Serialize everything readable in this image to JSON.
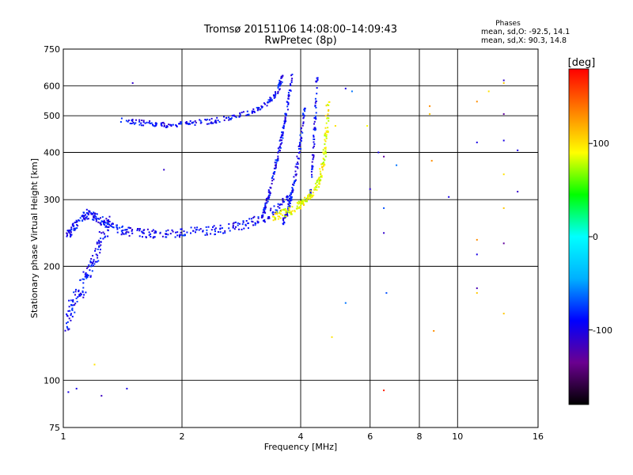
{
  "chart_data": {
    "type": "scatter",
    "title": "Tromsø 20151106 14:08:00–14:09:43",
    "subtitle": "RwPretec (8p)",
    "xlabel": "Frequency [MHz]",
    "ylabel": "Stationary phase Virtual Height [km]",
    "x_scale": "log",
    "y_scale": "log",
    "xlim": [
      1,
      16
    ],
    "ylim": [
      75,
      750
    ],
    "x_ticks": [
      {
        "value": 1,
        "label": "1"
      },
      {
        "value": 2,
        "label": "2"
      },
      {
        "value": 4,
        "label": "4"
      },
      {
        "value": 6,
        "label": "6"
      },
      {
        "value": 8,
        "label": "8"
      },
      {
        "value": 10,
        "label": "10"
      },
      {
        "value": 16,
        "label": "16"
      }
    ],
    "y_ticks": [
      {
        "value": 75,
        "label": "75"
      },
      {
        "value": 100,
        "label": "100"
      },
      {
        "value": 200,
        "label": "200"
      },
      {
        "value": 300,
        "label": "300"
      },
      {
        "value": 400,
        "label": "400"
      },
      {
        "value": 500,
        "label": "500"
      },
      {
        "value": 600,
        "label": "600"
      },
      {
        "value": 750,
        "label": "750"
      }
    ],
    "grid": true,
    "stats": {
      "heading": "Phases",
      "line_o": "mean, sd,O: -92.5, 14.1",
      "line_x": "mean, sd,X:  90.3, 14.8"
    },
    "colorbar": {
      "label": "[deg]",
      "range": [
        -180,
        180
      ],
      "ticks": [
        {
          "value": 100,
          "label": "100"
        },
        {
          "value": 0,
          "label": "0"
        },
        {
          "value": -100,
          "label": "-100"
        }
      ],
      "colors": [
        "#000000",
        "#6b0090",
        "#0000ff",
        "#00b0ff",
        "#00ffff",
        "#00ff00",
        "#ffff00",
        "#ff8000",
        "#ff0000"
      ]
    },
    "series": [
      {
        "mode": "O",
        "phase_deg": -92,
        "trace_segments": [
          {
            "x": [
              1.02,
              1.05,
              1.1,
              1.15,
              1.2,
              1.27,
              1.35,
              1.45,
              1.6,
              1.8,
              2.0,
              2.3,
              2.6,
              2.9,
              3.2,
              3.5,
              3.8
            ],
            "y": [
              240,
              250,
              265,
              275,
              272,
              262,
              252,
              247,
              245,
              244,
              245,
              248,
              252,
              258,
              268,
              285,
              305
            ],
            "spread": 0.035
          },
          {
            "x": [
              3.2,
              3.3,
              3.4,
              3.5,
              3.6,
              3.7,
              3.8
            ],
            "y": [
              270,
              300,
              340,
              390,
              450,
              530,
              640
            ],
            "spread": 0.02
          },
          {
            "x": [
              3.6,
              3.7,
              3.8,
              3.9,
              4.0,
              4.1
            ],
            "y": [
              260,
              280,
              310,
              360,
              430,
              530
            ],
            "spread": 0.02
          },
          {
            "x": [
              4.2,
              4.3,
              4.35,
              4.4
            ],
            "y": [
              300,
              380,
              480,
              640
            ],
            "spread": 0.02
          },
          {
            "x": [
              1.4,
              1.6,
              1.8,
              2.0,
              2.3,
              2.6,
              3.0,
              3.3,
              3.5,
              3.6
            ],
            "y": [
              485,
              478,
              472,
              475,
              482,
              492,
              510,
              540,
              580,
              640
            ],
            "spread": 0.02
          },
          {
            "x": [
              1.02,
              1.05,
              1.1,
              1.15,
              1.2,
              1.25,
              1.3
            ],
            "y": [
              140,
              155,
              170,
              190,
              210,
              235,
              260
            ],
            "spread": 0.06
          }
        ]
      },
      {
        "mode": "X",
        "phase_deg": 90,
        "trace_segments": [
          {
            "x": [
              3.4,
              3.6,
              3.8,
              4.0,
              4.2,
              4.4,
              4.5,
              4.6,
              4.65,
              4.7
            ],
            "y": [
              270,
              275,
              282,
              292,
              305,
              325,
              350,
              390,
              450,
              560
            ],
            "spread": 0.03
          }
        ]
      },
      {
        "mode": "scattered",
        "points": [
          {
            "x": 1.5,
            "y": 610,
            "phase_deg": -110
          },
          {
            "x": 1.8,
            "y": 360,
            "phase_deg": -110
          },
          {
            "x": 1.03,
            "y": 93,
            "phase_deg": -100
          },
          {
            "x": 1.08,
            "y": 95,
            "phase_deg": -100
          },
          {
            "x": 1.25,
            "y": 91,
            "phase_deg": -115
          },
          {
            "x": 1.45,
            "y": 95,
            "phase_deg": -100
          },
          {
            "x": 1.2,
            "y": 110,
            "phase_deg": 100
          },
          {
            "x": 5.2,
            "y": 590,
            "phase_deg": -100
          },
          {
            "x": 5.9,
            "y": 470,
            "phase_deg": 90
          },
          {
            "x": 6.3,
            "y": 400,
            "phase_deg": -100
          },
          {
            "x": 6.5,
            "y": 390,
            "phase_deg": -130
          },
          {
            "x": 7.0,
            "y": 370,
            "phase_deg": -60
          },
          {
            "x": 6.0,
            "y": 320,
            "phase_deg": -110
          },
          {
            "x": 6.5,
            "y": 285,
            "phase_deg": -70
          },
          {
            "x": 6.5,
            "y": 245,
            "phase_deg": -110
          },
          {
            "x": 6.6,
            "y": 170,
            "phase_deg": -70
          },
          {
            "x": 5.2,
            "y": 160,
            "phase_deg": -60
          },
          {
            "x": 4.8,
            "y": 130,
            "phase_deg": 100
          },
          {
            "x": 6.5,
            "y": 94,
            "phase_deg": 170
          },
          {
            "x": 8.5,
            "y": 530,
            "phase_deg": 130
          },
          {
            "x": 8.5,
            "y": 505,
            "phase_deg": 110
          },
          {
            "x": 8.6,
            "y": 380,
            "phase_deg": 130
          },
          {
            "x": 9.5,
            "y": 305,
            "phase_deg": -100
          },
          {
            "x": 8.7,
            "y": 135,
            "phase_deg": 130
          },
          {
            "x": 11.2,
            "y": 545,
            "phase_deg": 130
          },
          {
            "x": 11.2,
            "y": 425,
            "phase_deg": -100
          },
          {
            "x": 11.2,
            "y": 235,
            "phase_deg": 130
          },
          {
            "x": 11.2,
            "y": 215,
            "phase_deg": -100
          },
          {
            "x": 11.2,
            "y": 175,
            "phase_deg": -120
          },
          {
            "x": 11.2,
            "y": 170,
            "phase_deg": 110
          },
          {
            "x": 12.0,
            "y": 580,
            "phase_deg": 100
          },
          {
            "x": 13.1,
            "y": 620,
            "phase_deg": -110
          },
          {
            "x": 13.1,
            "y": 610,
            "phase_deg": 110
          },
          {
            "x": 13.1,
            "y": 505,
            "phase_deg": -130
          },
          {
            "x": 13.1,
            "y": 430,
            "phase_deg": -100
          },
          {
            "x": 13.1,
            "y": 350,
            "phase_deg": 100
          },
          {
            "x": 13.1,
            "y": 285,
            "phase_deg": 110
          },
          {
            "x": 13.1,
            "y": 230,
            "phase_deg": -130
          },
          {
            "x": 13.1,
            "y": 150,
            "phase_deg": 110
          },
          {
            "x": 14.2,
            "y": 405,
            "phase_deg": -100
          },
          {
            "x": 14.2,
            "y": 315,
            "phase_deg": -110
          },
          {
            "x": 4.9,
            "y": 470,
            "phase_deg": 100
          },
          {
            "x": 5.4,
            "y": 580,
            "phase_deg": -60
          }
        ]
      }
    ]
  }
}
